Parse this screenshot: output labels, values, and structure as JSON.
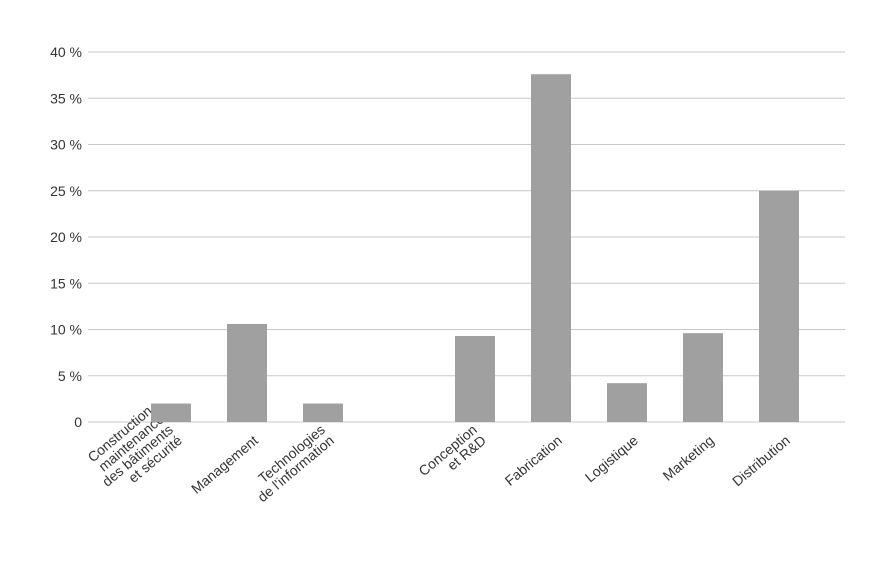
{
  "chart_data": {
    "type": "bar",
    "categories": [
      [
        "Construction,",
        "maintenance",
        "des bâtiments",
        "et sécurité"
      ],
      [
        "Management"
      ],
      [
        "Technologies",
        "de l'information"
      ],
      null,
      [
        "Conception",
        "et R&D"
      ],
      [
        "Fabrication"
      ],
      [
        "Logistique"
      ],
      [
        "Marketing"
      ],
      [
        "Distribution"
      ]
    ],
    "values": [
      2,
      10.6,
      2,
      null,
      9.3,
      37.6,
      4.2,
      9.6,
      25
    ],
    "color": "#a0a0a0",
    "ylim": [
      0,
      40
    ],
    "yticks": [
      0,
      {
        "value": 5,
        "label": "5 %"
      },
      {
        "value": 10,
        "label": "10 %"
      },
      {
        "value": 15,
        "label": "15 %"
      },
      {
        "value": 20,
        "label": "20 %"
      },
      {
        "value": 25,
        "label": "25 %"
      },
      {
        "value": 30,
        "label": "30 %"
      },
      {
        "value": 35,
        "label": "35 %"
      },
      {
        "value": 40,
        "label": "40 %"
      }
    ],
    "grid": true
  }
}
